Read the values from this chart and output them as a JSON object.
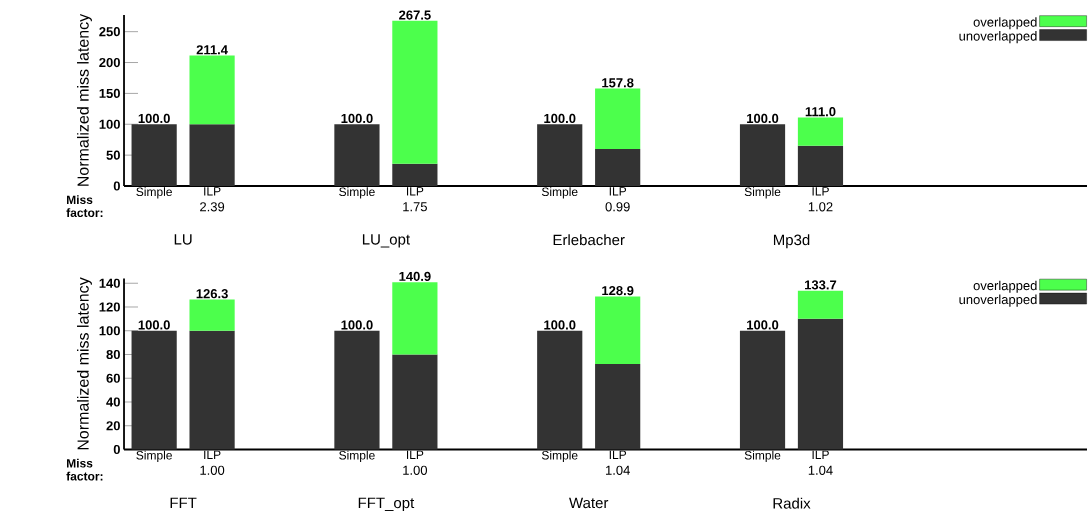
{
  "chart_data": [
    {
      "type": "bar",
      "stacked": true,
      "ylabel": "Normalized miss latency",
      "categories": [
        "Simple",
        "ILP",
        "Simple",
        "ILP",
        "Simple",
        "ILP",
        "Simple",
        "ILP"
      ],
      "series": [
        {
          "name": "unoverlapped",
          "color": "#333333",
          "values": [
            100,
            100,
            100,
            36,
            100,
            60,
            100,
            65
          ]
        },
        {
          "name": "overlapped",
          "color": "#4cff4c",
          "values": [
            null,
            111.4,
            null,
            231.5,
            null,
            97.8,
            null,
            46.0
          ]
        }
      ],
      "totals": [
        "100.0",
        "211.4",
        "100.0",
        "267.5",
        "100.0",
        "157.8",
        "100.0",
        "111.0"
      ],
      "ylim": [
        0,
        277
      ],
      "yticks": [
        0,
        50,
        100,
        150,
        200,
        250
      ],
      "legend": "top right",
      "annotations": [
        "Miss factor:",
        "2.39",
        "1.75",
        "0.99",
        "1.02",
        "LU",
        "LU_opt",
        "Erlebacher",
        "Mp3d"
      ]
    },
    {
      "type": "bar",
      "stacked": true,
      "ylabel": "Normalized miss latency",
      "categories": [
        "Simple",
        "ILP",
        "Simple",
        "ILP",
        "Simple",
        "ILP",
        "Simple",
        "ILP"
      ],
      "series": [
        {
          "name": "unoverlapped",
          "color": "#333333",
          "values": [
            100,
            100,
            100,
            80,
            100,
            72,
            100,
            110
          ]
        },
        {
          "name": "overlapped",
          "color": "#4cff4c",
          "values": [
            null,
            26.3,
            null,
            60.9,
            null,
            56.9,
            null,
            23.7
          ]
        }
      ],
      "totals": [
        "100.0",
        "126.3",
        "100.0",
        "140.9",
        "100.0",
        "128.9",
        "100.0",
        "133.7"
      ],
      "ylim": [
        0,
        144
      ],
      "yticks": [
        0,
        20,
        40,
        60,
        80,
        100,
        120,
        140
      ],
      "legend": "top right",
      "annotations": [
        "Miss factor:",
        "1.00",
        "1.00",
        "1.04",
        "1.04",
        "FFT",
        "FFT_opt",
        "Water",
        "Radix"
      ]
    }
  ]
}
